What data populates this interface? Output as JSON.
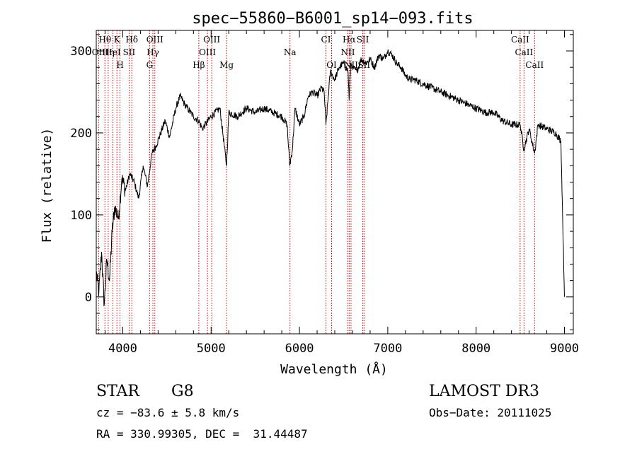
{
  "chart_data": {
    "type": "line",
    "title": "spec−55860−B6001_sp14−093.fits",
    "xlabel": "Wavelength (Å)",
    "ylabel": "Flux (relative)",
    "xlim": [
      3700,
      9100
    ],
    "ylim": [
      -45,
      325
    ],
    "x_ticks": [
      4000,
      5000,
      6000,
      7000,
      8000,
      9000
    ],
    "y_ticks": [
      0,
      100,
      200,
      300
    ],
    "grid": false,
    "legend": "none",
    "series": [
      {
        "color": "#000000",
        "x": [
          3700,
          3730,
          3760,
          3790,
          3820,
          3850,
          3880,
          3910,
          3950,
          3990,
          4030,
          4080,
          4130,
          4180,
          4230,
          4280,
          4330,
          4380,
          4430,
          4480,
          4530,
          4600,
          4650,
          4700,
          4800,
          4860,
          4900,
          5000,
          5100,
          5175,
          5200,
          5300,
          5400,
          5500,
          5600,
          5700,
          5800,
          5860,
          5890,
          5920,
          5950,
          6000,
          6050,
          6100,
          6150,
          6200,
          6250,
          6280,
          6300,
          6350,
          6400,
          6450,
          6500,
          6550,
          6563,
          6580,
          6600,
          6650,
          6700,
          6750,
          6800,
          6850,
          6900,
          6950,
          7000,
          7050,
          7100,
          7150,
          7200,
          7250,
          7300,
          7400,
          7500,
          7600,
          7700,
          7800,
          7900,
          8000,
          8100,
          8200,
          8300,
          8400,
          8500,
          8540,
          8600,
          8662,
          8700,
          8800,
          8900,
          8960,
          9000
        ],
        "values": [
          30,
          5,
          55,
          -10,
          45,
          20,
          80,
          110,
          95,
          145,
          130,
          150,
          140,
          120,
          160,
          135,
          175,
          185,
          200,
          215,
          195,
          230,
          245,
          235,
          220,
          215,
          205,
          220,
          230,
          160,
          225,
          220,
          230,
          225,
          230,
          225,
          220,
          210,
          160,
          180,
          230,
          210,
          220,
          245,
          250,
          245,
          255,
          250,
          210,
          275,
          265,
          280,
          285,
          275,
          240,
          285,
          280,
          275,
          290,
          285,
          290,
          280,
          295,
          290,
          300,
          295,
          285,
          280,
          270,
          265,
          265,
          260,
          255,
          250,
          245,
          240,
          235,
          230,
          225,
          225,
          215,
          210,
          210,
          180,
          205,
          175,
          210,
          205,
          200,
          190,
          0
        ]
      }
    ],
    "spectral_lines": [
      {
        "label": "Hθ",
        "x": 3798
      },
      {
        "label": "K",
        "x": 3934
      },
      {
        "label": "Hδ",
        "x": 4102
      },
      {
        "label": "OIII",
        "x": 4363
      },
      {
        "label": "OIII",
        "x": 5007
      },
      {
        "label": "CI",
        "x": 6300
      },
      {
        "label": "Hα",
        "x": 6563
      },
      {
        "label": "SII",
        "x": 6717
      },
      {
        "label": "CaII",
        "x": 8498
      },
      {
        "label": "HeI",
        "x": 3889
      },
      {
        "label": "SII",
        "x": 4072
      },
      {
        "label": "Hγ",
        "x": 4341
      },
      {
        "label": "OIII",
        "x": 4959
      },
      {
        "label": "Na",
        "x": 5893
      },
      {
        "label": "NII",
        "x": 6548
      },
      {
        "label": "CaII",
        "x": 8542
      },
      {
        "label": "OII",
        "x": 3727
      },
      {
        "label": "Hη",
        "x": 3835
      },
      {
        "label": "H",
        "x": 3969
      },
      {
        "label": "G",
        "x": 4304
      },
      {
        "label": "Hβ",
        "x": 4861
      },
      {
        "label": "Mg",
        "x": 5175
      },
      {
        "label": "OI",
        "x": 6364
      },
      {
        "label": "NII",
        "x": 6584
      },
      {
        "label": "SII",
        "x": 6731
      },
      {
        "label": "CaII",
        "x": 8662
      }
    ]
  },
  "info": {
    "class": "STAR",
    "subclass": "G8",
    "survey": "LAMOST DR3",
    "cz": "cz = −83.6 ± 5.8 km/s",
    "obs_date": "Obs−Date: 20111025",
    "radec": "RA = 330.99305, DEC =  31.44487"
  }
}
